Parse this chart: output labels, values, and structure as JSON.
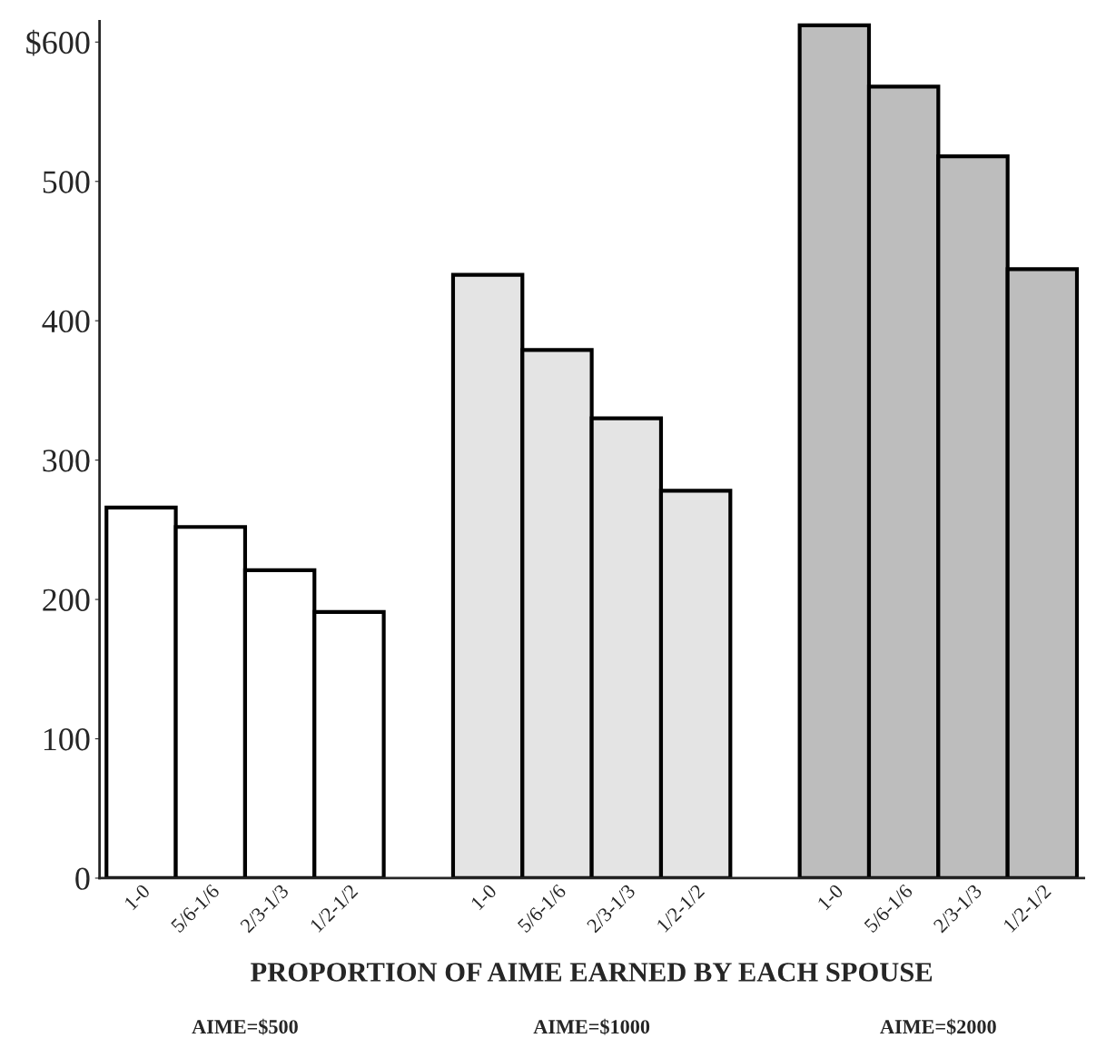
{
  "chart_data": {
    "type": "bar",
    "xlabel": "PROPORTION OF AIME EARNED BY EACH SPOUSE",
    "categories": [
      "1-0",
      "5/6-1/6",
      "2/3-1/3",
      "1/2-1/2",
      null,
      "1-0",
      "5/6-1/6",
      "2/3-1/3",
      "1/2-1/2",
      null,
      "1-0",
      "5/6-1/6",
      "2/3-1/3",
      "1/2-1/2"
    ],
    "values": [
      266,
      252,
      221,
      191,
      null,
      433,
      379,
      330,
      278,
      null,
      612,
      568,
      518,
      437
    ],
    "colors": [
      "#ffffff",
      "#ffffff",
      "#ffffff",
      "#ffffff",
      null,
      "#e4e4e4",
      "#e4e4e4",
      "#e4e4e4",
      "#e4e4e4",
      null,
      "#bdbdbd",
      "#bdbdbd",
      "#bdbdbd",
      "#bdbdbd"
    ],
    "annotations": [
      "AIME=$500",
      "AIME=$1000",
      "AIME=$2000"
    ],
    "ylim": [
      0,
      615
    ],
    "yticks": [
      0,
      100,
      200,
      300,
      400,
      500,
      {
        "value": 600,
        "label": "$600"
      }
    ],
    "grid": false,
    "legend": false
  }
}
